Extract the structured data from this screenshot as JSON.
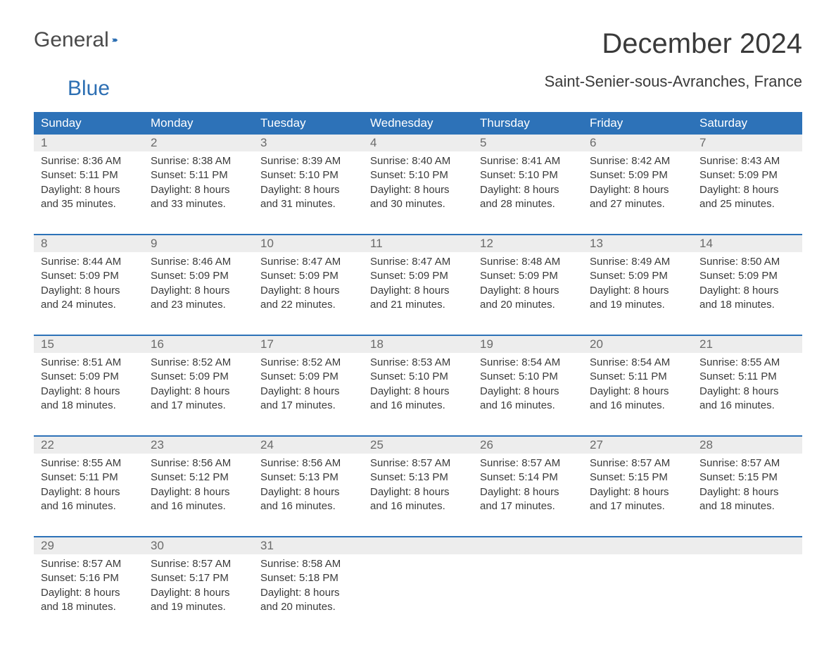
{
  "brand": {
    "part1": "General",
    "part2": "Blue"
  },
  "title": "December 2024",
  "location": "Saint-Senier-sous-Avranches, France",
  "colors": {
    "header_bg": "#2d72b8",
    "header_text": "#ffffff",
    "daynum_bg": "#ededed",
    "daynum_text": "#6a6a6a",
    "body_text": "#3a3a3a",
    "sep": "#2d72b8",
    "brand_gray": "#4a4a4a",
    "brand_blue": "#2d6fb3"
  },
  "day_headers": [
    "Sunday",
    "Monday",
    "Tuesday",
    "Wednesday",
    "Thursday",
    "Friday",
    "Saturday"
  ],
  "weeks": [
    [
      {
        "num": "1",
        "sunrise": "8:36 AM",
        "sunset": "5:11 PM",
        "daylight": "8 hours and 35 minutes."
      },
      {
        "num": "2",
        "sunrise": "8:38 AM",
        "sunset": "5:11 PM",
        "daylight": "8 hours and 33 minutes."
      },
      {
        "num": "3",
        "sunrise": "8:39 AM",
        "sunset": "5:10 PM",
        "daylight": "8 hours and 31 minutes."
      },
      {
        "num": "4",
        "sunrise": "8:40 AM",
        "sunset": "5:10 PM",
        "daylight": "8 hours and 30 minutes."
      },
      {
        "num": "5",
        "sunrise": "8:41 AM",
        "sunset": "5:10 PM",
        "daylight": "8 hours and 28 minutes."
      },
      {
        "num": "6",
        "sunrise": "8:42 AM",
        "sunset": "5:09 PM",
        "daylight": "8 hours and 27 minutes."
      },
      {
        "num": "7",
        "sunrise": "8:43 AM",
        "sunset": "5:09 PM",
        "daylight": "8 hours and 25 minutes."
      }
    ],
    [
      {
        "num": "8",
        "sunrise": "8:44 AM",
        "sunset": "5:09 PM",
        "daylight": "8 hours and 24 minutes."
      },
      {
        "num": "9",
        "sunrise": "8:46 AM",
        "sunset": "5:09 PM",
        "daylight": "8 hours and 23 minutes."
      },
      {
        "num": "10",
        "sunrise": "8:47 AM",
        "sunset": "5:09 PM",
        "daylight": "8 hours and 22 minutes."
      },
      {
        "num": "11",
        "sunrise": "8:47 AM",
        "sunset": "5:09 PM",
        "daylight": "8 hours and 21 minutes."
      },
      {
        "num": "12",
        "sunrise": "8:48 AM",
        "sunset": "5:09 PM",
        "daylight": "8 hours and 20 minutes."
      },
      {
        "num": "13",
        "sunrise": "8:49 AM",
        "sunset": "5:09 PM",
        "daylight": "8 hours and 19 minutes."
      },
      {
        "num": "14",
        "sunrise": "8:50 AM",
        "sunset": "5:09 PM",
        "daylight": "8 hours and 18 minutes."
      }
    ],
    [
      {
        "num": "15",
        "sunrise": "8:51 AM",
        "sunset": "5:09 PM",
        "daylight": "8 hours and 18 minutes."
      },
      {
        "num": "16",
        "sunrise": "8:52 AM",
        "sunset": "5:09 PM",
        "daylight": "8 hours and 17 minutes."
      },
      {
        "num": "17",
        "sunrise": "8:52 AM",
        "sunset": "5:09 PM",
        "daylight": "8 hours and 17 minutes."
      },
      {
        "num": "18",
        "sunrise": "8:53 AM",
        "sunset": "5:10 PM",
        "daylight": "8 hours and 16 minutes."
      },
      {
        "num": "19",
        "sunrise": "8:54 AM",
        "sunset": "5:10 PM",
        "daylight": "8 hours and 16 minutes."
      },
      {
        "num": "20",
        "sunrise": "8:54 AM",
        "sunset": "5:11 PM",
        "daylight": "8 hours and 16 minutes."
      },
      {
        "num": "21",
        "sunrise": "8:55 AM",
        "sunset": "5:11 PM",
        "daylight": "8 hours and 16 minutes."
      }
    ],
    [
      {
        "num": "22",
        "sunrise": "8:55 AM",
        "sunset": "5:11 PM",
        "daylight": "8 hours and 16 minutes."
      },
      {
        "num": "23",
        "sunrise": "8:56 AM",
        "sunset": "5:12 PM",
        "daylight": "8 hours and 16 minutes."
      },
      {
        "num": "24",
        "sunrise": "8:56 AM",
        "sunset": "5:13 PM",
        "daylight": "8 hours and 16 minutes."
      },
      {
        "num": "25",
        "sunrise": "8:57 AM",
        "sunset": "5:13 PM",
        "daylight": "8 hours and 16 minutes."
      },
      {
        "num": "26",
        "sunrise": "8:57 AM",
        "sunset": "5:14 PM",
        "daylight": "8 hours and 17 minutes."
      },
      {
        "num": "27",
        "sunrise": "8:57 AM",
        "sunset": "5:15 PM",
        "daylight": "8 hours and 17 minutes."
      },
      {
        "num": "28",
        "sunrise": "8:57 AM",
        "sunset": "5:15 PM",
        "daylight": "8 hours and 18 minutes."
      }
    ],
    [
      {
        "num": "29",
        "sunrise": "8:57 AM",
        "sunset": "5:16 PM",
        "daylight": "8 hours and 18 minutes."
      },
      {
        "num": "30",
        "sunrise": "8:57 AM",
        "sunset": "5:17 PM",
        "daylight": "8 hours and 19 minutes."
      },
      {
        "num": "31",
        "sunrise": "8:58 AM",
        "sunset": "5:18 PM",
        "daylight": "8 hours and 20 minutes."
      },
      null,
      null,
      null,
      null
    ]
  ],
  "labels": {
    "sunrise": "Sunrise: ",
    "sunset": "Sunset: ",
    "daylight": "Daylight: "
  }
}
